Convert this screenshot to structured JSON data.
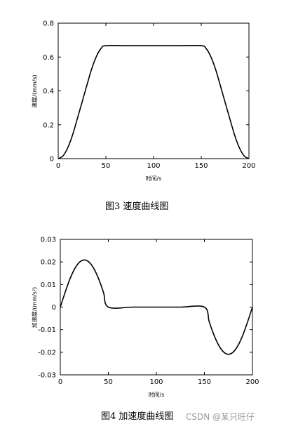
{
  "chart_data": [
    {
      "type": "line",
      "title": "",
      "xlabel": "时间/s",
      "ylabel": "速度/(mm/s)",
      "xlim": [
        0,
        200
      ],
      "ylim": [
        0,
        0.8
      ],
      "xticks": [
        0,
        50,
        100,
        150,
        200
      ],
      "yticks": [
        0,
        0.2,
        0.4,
        0.6,
        0.8
      ],
      "xtick_labels": [
        "0",
        "50",
        "100",
        "150",
        "200"
      ],
      "ytick_labels": [
        "0",
        "0.2",
        "0.4",
        "0.6",
        "0.8"
      ],
      "grid": false,
      "series": [
        {
          "x": [
            0,
            5,
            10,
            15,
            20,
            25,
            30,
            35,
            40,
            45,
            50,
            75,
            100,
            125,
            150,
            155,
            160,
            165,
            170,
            175,
            180,
            185,
            190,
            195,
            200
          ],
          "y": [
            0,
            0.016,
            0.064,
            0.139,
            0.235,
            0.333,
            0.432,
            0.528,
            0.603,
            0.651,
            0.667,
            0.667,
            0.667,
            0.667,
            0.667,
            0.651,
            0.603,
            0.528,
            0.432,
            0.333,
            0.235,
            0.139,
            0.064,
            0.016,
            0
          ]
        }
      ]
    },
    {
      "type": "line",
      "title": "",
      "xlabel": "时间/s",
      "ylabel": "加速度/(mm/s²)",
      "xlim": [
        0,
        200
      ],
      "ylim": [
        -0.03,
        0.03
      ],
      "xticks": [
        0,
        50,
        100,
        150,
        200
      ],
      "yticks": [
        -0.03,
        -0.02,
        -0.01,
        0,
        0.01,
        0.02,
        0.03
      ],
      "xtick_labels": [
        "0",
        "50",
        "100",
        "150",
        "200"
      ],
      "ytick_labels": [
        "-0.03",
        "-0.02",
        "-0.01",
        "0",
        "0.01",
        "0.02",
        "0.03"
      ],
      "grid": false,
      "series": [
        {
          "x": [
            0,
            5,
            10,
            15,
            20,
            25,
            30,
            35,
            40,
            45,
            50,
            75,
            100,
            125,
            150,
            155,
            160,
            165,
            170,
            175,
            180,
            185,
            190,
            195,
            200
          ],
          "y": [
            0,
            0.0065,
            0.0124,
            0.017,
            0.0199,
            0.0209,
            0.0199,
            0.017,
            0.0124,
            0.0065,
            0,
            0,
            0,
            0,
            0,
            -0.0065,
            -0.0124,
            -0.017,
            -0.0199,
            -0.0209,
            -0.0199,
            -0.017,
            -0.0124,
            -0.0065,
            0
          ]
        }
      ]
    }
  ],
  "captions": {
    "fig3": "图3 速度曲线图",
    "fig4": "图4 加速度曲线图"
  },
  "watermark": "CSDN @某只旺仔",
  "colors": {
    "line": "#000000",
    "axis": "#000000",
    "caption": "#000000",
    "watermark": "#999999"
  }
}
